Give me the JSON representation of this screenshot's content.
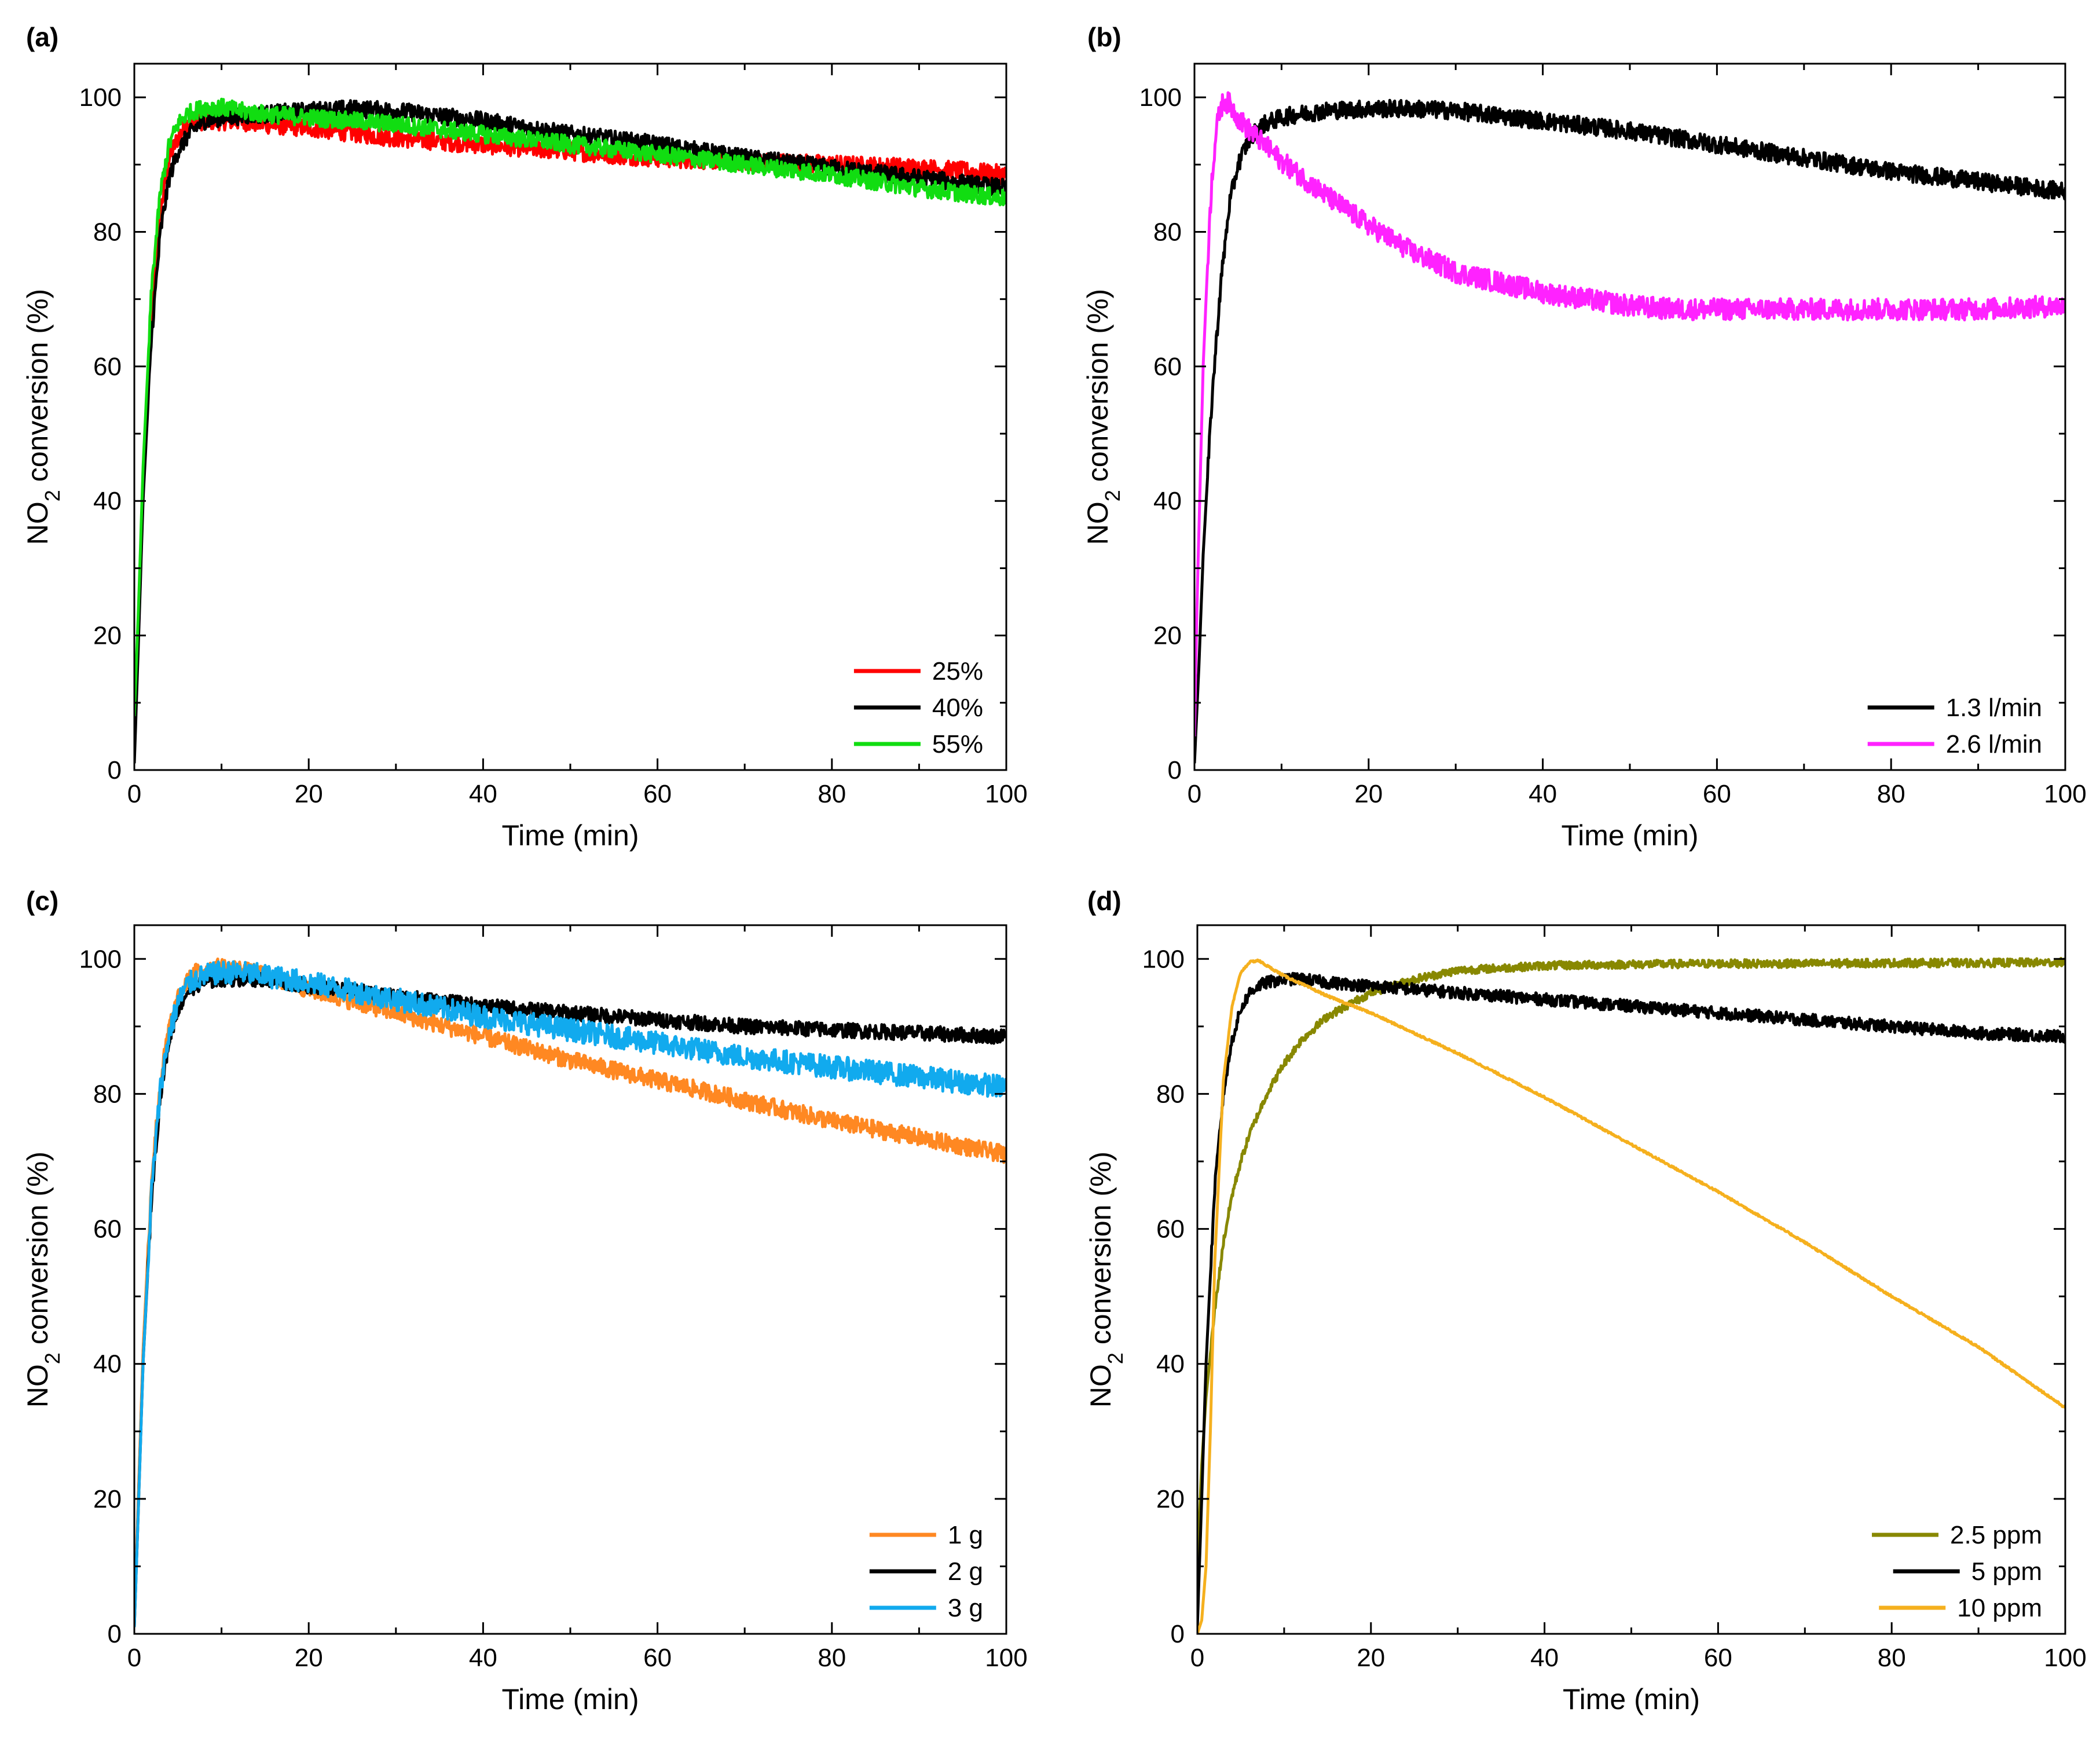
{
  "chart_data": [
    {
      "type": "line",
      "panel": "(a)",
      "xlabel": "Time (min)",
      "ylabel_main": "NO",
      "ylabel_sub": "2",
      "ylabel_rest": " conversion (%)",
      "xlim": [
        0,
        100
      ],
      "ylim": [
        0,
        105
      ],
      "xticks": [
        0,
        20,
        40,
        60,
        80,
        100
      ],
      "yticks": [
        0,
        20,
        40,
        60,
        80,
        100
      ],
      "legend_position": "bottom-right",
      "series": [
        {
          "name": "25%",
          "color": "#ff0000",
          "noise": 1.4,
          "x": [
            0,
            0.5,
            1,
            2,
            3,
            4,
            5,
            6,
            7,
            8,
            10,
            12,
            15,
            20,
            30,
            40,
            50,
            60,
            70,
            80,
            90,
            100
          ],
          "y": [
            3,
            22,
            42,
            68,
            83,
            91,
            94,
            96,
            96.5,
            96.5,
            96.5,
            96.5,
            96,
            95.5,
            94,
            93,
            92,
            91,
            90.5,
            90,
            89.5,
            88.5
          ]
        },
        {
          "name": "40%",
          "color": "#000000",
          "noise": 1.3,
          "x": [
            0,
            0.5,
            1,
            2,
            3,
            4,
            5,
            6,
            7,
            8,
            10,
            12,
            15,
            20,
            25,
            30,
            40,
            50,
            60,
            70,
            80,
            90,
            100
          ],
          "y": [
            1,
            20,
            40,
            65,
            80,
            88,
            92,
            94,
            95.5,
            96.5,
            97,
            97.2,
            97.5,
            98,
            98.3,
            98,
            96.5,
            94.5,
            93,
            91,
            89.5,
            88,
            86.5
          ]
        },
        {
          "name": "55%",
          "color": "#11dd11",
          "noise": 1.3,
          "x": [
            0,
            0.5,
            1,
            2,
            3,
            4,
            5,
            6,
            7,
            8,
            10,
            12,
            15,
            20,
            30,
            40,
            50,
            60,
            70,
            80,
            90,
            100
          ],
          "y": [
            8,
            25,
            45,
            72,
            86,
            93,
            96,
            97.5,
            98,
            98.5,
            98.5,
            98,
            97.5,
            97,
            96,
            94.5,
            93,
            91.5,
            90,
            88.5,
            86.5,
            85
          ]
        }
      ]
    },
    {
      "type": "line",
      "panel": "(b)",
      "xlabel": "Time (min)",
      "ylabel_main": "NO",
      "ylabel_sub": "2",
      "ylabel_rest": " conversion (%)",
      "xlim": [
        0,
        100
      ],
      "ylim": [
        0,
        105
      ],
      "xticks": [
        0,
        20,
        40,
        60,
        80,
        100
      ],
      "yticks": [
        0,
        20,
        40,
        60,
        80,
        100
      ],
      "legend_position": "bottom-right",
      "series": [
        {
          "name": "1.3 l/min",
          "color": "#000000",
          "noise": 1.3,
          "x": [
            0,
            0.5,
            1,
            2,
            3,
            4,
            5,
            6,
            7,
            8,
            10,
            12,
            15,
            20,
            25,
            30,
            40,
            50,
            60,
            70,
            80,
            90,
            100
          ],
          "y": [
            1,
            15,
            32,
            55,
            72,
            84,
            90,
            93,
            95,
            96,
            97,
            97.5,
            98,
            98.3,
            98.3,
            98,
            96.5,
            95,
            93,
            91,
            89,
            87.5,
            86
          ]
        },
        {
          "name": "2.6 l/min",
          "color": "#ff22ff",
          "noise": 1.6,
          "x": [
            0,
            0.3,
            0.7,
            1,
            1.5,
            2,
            2.5,
            3,
            3.5,
            4,
            5,
            6,
            8,
            10,
            15,
            20,
            25,
            30,
            35,
            40,
            45,
            50,
            55,
            60,
            70,
            80,
            90,
            100
          ],
          "y": [
            5,
            25,
            45,
            60,
            75,
            88,
            95,
            98.5,
            99.5,
            99,
            97,
            95.5,
            93,
            90.5,
            85.5,
            81,
            77,
            74,
            72.5,
            71,
            70,
            69,
            68.5,
            68.5,
            68.5,
            68.5,
            68.5,
            69
          ]
        }
      ]
    },
    {
      "type": "line",
      "panel": "(c)",
      "xlabel": "Time (min)",
      "ylabel_main": "NO",
      "ylabel_sub": "2",
      "ylabel_rest": " conversion (%)",
      "xlim": [
        0,
        100
      ],
      "ylim": [
        0,
        105
      ],
      "xticks": [
        0,
        20,
        40,
        60,
        80,
        100
      ],
      "yticks": [
        0,
        20,
        40,
        60,
        80,
        100
      ],
      "legend_position": "bottom-right",
      "series": [
        {
          "name": "1 g",
          "color": "#ff8822",
          "noise": 1.3,
          "x": [
            0,
            0.5,
            1,
            2,
            3,
            4,
            5,
            6,
            7,
            8,
            10,
            12,
            15,
            20,
            30,
            40,
            50,
            60,
            70,
            80,
            90,
            100
          ],
          "y": [
            2,
            22,
            42,
            68,
            82,
            90,
            94,
            96.5,
            98,
            98.5,
            98.8,
            98.5,
            97.5,
            95.5,
            92,
            88.5,
            85,
            82,
            79,
            76,
            73.5,
            71
          ]
        },
        {
          "name": "2 g",
          "color": "#000000",
          "noise": 1.1,
          "x": [
            0,
            0.5,
            1,
            2,
            3,
            4,
            5,
            6,
            7,
            8,
            10,
            12,
            15,
            20,
            30,
            40,
            50,
            60,
            70,
            80,
            90,
            100
          ],
          "y": [
            1,
            20,
            40,
            65,
            80,
            88,
            92.5,
            95,
            96,
            96.5,
            97,
            97,
            97,
            96,
            94.5,
            93,
            92,
            91,
            90,
            89.5,
            89,
            88.5
          ]
        },
        {
          "name": "3 g",
          "color": "#11aaee",
          "noise": 1.7,
          "x": [
            0,
            0.5,
            1,
            2,
            3,
            4,
            5,
            6,
            7,
            8,
            10,
            12,
            15,
            20,
            30,
            40,
            50,
            60,
            70,
            80,
            90,
            100
          ],
          "y": [
            1,
            20,
            40,
            66,
            81,
            89,
            93.5,
            96,
            97,
            97.5,
            98,
            98,
            97.5,
            96.5,
            94,
            91.5,
            89.5,
            87.5,
            85.5,
            84,
            82.5,
            81
          ]
        }
      ]
    },
    {
      "type": "line",
      "panel": "(d)",
      "xlabel": "Time (min)",
      "ylabel_main": "NO",
      "ylabel_sub": "2",
      "ylabel_rest": " conversion (%)",
      "xlim": [
        0,
        100
      ],
      "ylim": [
        0,
        105
      ],
      "xticks": [
        0,
        20,
        40,
        60,
        80,
        100
      ],
      "yticks": [
        0,
        20,
        40,
        60,
        80,
        100
      ],
      "legend_position": "bottom-right",
      "series": [
        {
          "name": "2.5 ppm",
          "color": "#888800",
          "noise": 0.6,
          "x": [
            0,
            0.5,
            1,
            2,
            3,
            4,
            5,
            6,
            7,
            8,
            10,
            12,
            15,
            20,
            25,
            30,
            40,
            50,
            60,
            70,
            80,
            90,
            100
          ],
          "y": [
            10,
            25,
            35,
            48,
            58,
            65,
            70,
            74,
            77,
            80,
            84.5,
            88,
            91.5,
            95,
            97,
            98.3,
            99,
            99.2,
            99.3,
            99.3,
            99.4,
            99.4,
            99.5
          ]
        },
        {
          "name": "5 ppm",
          "color": "#000000",
          "noise": 0.9,
          "x": [
            0,
            0.5,
            1,
            2,
            3,
            4,
            5,
            6,
            7,
            8,
            10,
            12,
            15,
            20,
            30,
            40,
            50,
            60,
            70,
            80,
            90,
            100
          ],
          "y": [
            1,
            20,
            40,
            66,
            80,
            88,
            92.5,
            95,
            96,
            96.5,
            97,
            97,
            96.5,
            96,
            95,
            94,
            93,
            92,
            91,
            90,
            89,
            88.5
          ]
        },
        {
          "name": "10 ppm",
          "color": "#f5b01e",
          "noise": 0.15,
          "x": [
            0,
            0.5,
            1,
            1.5,
            2,
            3,
            4,
            5,
            6,
            7,
            8,
            10,
            15,
            20,
            30,
            40,
            50,
            60,
            70,
            80,
            90,
            100
          ],
          "y": [
            0,
            2,
            10,
            30,
            55,
            82,
            93,
            98,
            99.5,
            99.8,
            99,
            97.5,
            94.5,
            92,
            86,
            79.5,
            72.5,
            65.5,
            58,
            50,
            42.5,
            33.5
          ]
        }
      ]
    }
  ]
}
